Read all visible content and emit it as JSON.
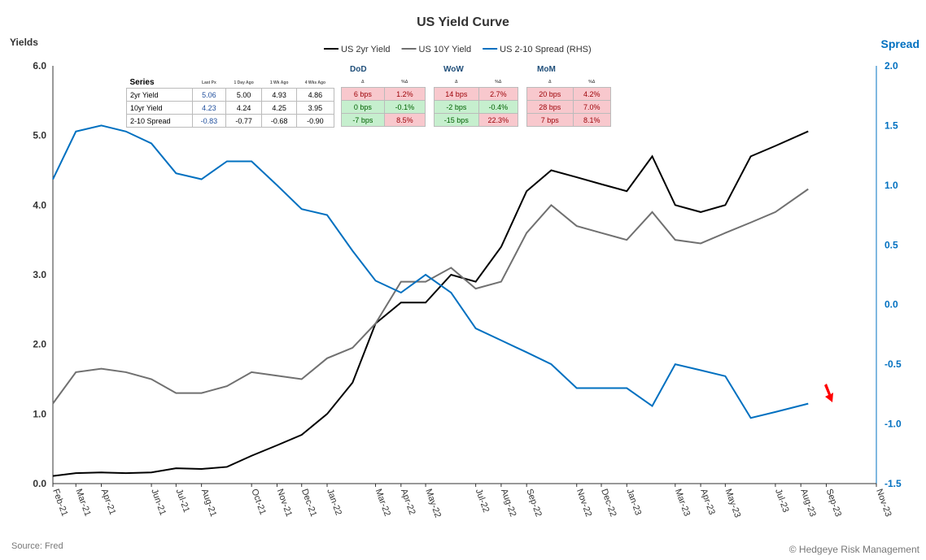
{
  "chart_data": {
    "type": "line",
    "title": "US Yield Curve",
    "ylabel": "Yields",
    "y2label": "Spread",
    "ylim": [
      0,
      6
    ],
    "y2lim": [
      -1.5,
      2.0
    ],
    "yticks": [
      "0.0",
      "1.0",
      "2.0",
      "3.0",
      "4.0",
      "5.0",
      "6.0"
    ],
    "y2ticks": [
      "-1.5",
      "-1.0",
      "-0.5",
      "0.0",
      "0.5",
      "1.0",
      "1.5",
      "2.0"
    ],
    "xticks": [
      "Feb-21",
      "Mar-21",
      "Apr-21",
      "Jun-21",
      "Jul-21",
      "Aug-21",
      "Oct-21",
      "Nov-21",
      "Dec-21",
      "Jan-22",
      "Mar-22",
      "Apr-22",
      "May-22",
      "Jul-22",
      "Aug-22",
      "Sep-22",
      "Nov-22",
      "Dec-22",
      "Jan-23",
      "Mar-23",
      "Apr-23",
      "May-23",
      "Jul-23",
      "Aug-23",
      "Sep-23",
      "Nov-23"
    ],
    "xrange": [
      "2021-02-01",
      "2023-11-01"
    ],
    "legend": "top-center",
    "dates": [
      "2021-02-01",
      "2021-03-01",
      "2021-04-01",
      "2021-05-01",
      "2021-06-01",
      "2021-07-01",
      "2021-08-01",
      "2021-09-01",
      "2021-10-01",
      "2021-11-01",
      "2021-12-01",
      "2022-01-01",
      "2022-02-01",
      "2022-03-01",
      "2022-04-01",
      "2022-05-01",
      "2022-06-01",
      "2022-07-01",
      "2022-08-01",
      "2022-09-01",
      "2022-10-01",
      "2022-11-01",
      "2022-12-01",
      "2023-01-01",
      "2023-02-01",
      "2023-03-01",
      "2023-04-01",
      "2023-05-01",
      "2023-06-01",
      "2023-07-01",
      "2023-08-10"
    ],
    "series": [
      {
        "name": "US 2yr Yield",
        "axis": "left",
        "color": "#000000",
        "values": [
          0.11,
          0.15,
          0.16,
          0.15,
          0.16,
          0.22,
          0.21,
          0.24,
          0.4,
          0.55,
          0.7,
          1.0,
          1.45,
          2.3,
          2.6,
          2.6,
          3.0,
          2.9,
          3.4,
          4.2,
          4.5,
          4.4,
          4.3,
          4.2,
          4.7,
          4.0,
          3.9,
          4.0,
          4.7,
          4.85,
          5.06
        ]
      },
      {
        "name": "US 10Y Yield",
        "axis": "left",
        "color": "#707070",
        "values": [
          1.15,
          1.6,
          1.65,
          1.6,
          1.5,
          1.3,
          1.3,
          1.4,
          1.6,
          1.55,
          1.5,
          1.8,
          1.95,
          2.3,
          2.9,
          2.9,
          3.1,
          2.8,
          2.9,
          3.6,
          4.0,
          3.7,
          3.6,
          3.5,
          3.9,
          3.5,
          3.45,
          3.6,
          3.75,
          3.9,
          4.23
        ]
      },
      {
        "name": "US 2-10 Spread (RHS)",
        "axis": "right",
        "color": "#0070c0",
        "values": [
          1.05,
          1.45,
          1.5,
          1.45,
          1.35,
          1.1,
          1.05,
          1.2,
          1.2,
          1.0,
          0.8,
          0.75,
          0.45,
          0.2,
          0.1,
          0.25,
          0.1,
          -0.2,
          -0.3,
          -0.4,
          -0.5,
          -0.7,
          -0.7,
          -0.7,
          -0.85,
          -0.5,
          -0.55,
          -0.6,
          -0.95,
          -0.9,
          -0.83
        ]
      }
    ]
  },
  "table": {
    "series_label": "Series",
    "headers": [
      "Last Px",
      "1 Day Ago",
      "1 Wk Ago",
      "4 Wks Ago"
    ],
    "groups": [
      "DoD",
      "WoW",
      "MoM"
    ],
    "delta": "Δ",
    "pct_delta": "%Δ",
    "rows": [
      {
        "name": "2yr Yield",
        "vals": [
          "5.06",
          "5.00",
          "4.93",
          "4.86"
        ],
        "dod": [
          "6 bps",
          "1.2%"
        ],
        "wow": [
          "14 bps",
          "2.7%"
        ],
        "mom": [
          "20 bps",
          "4.2%"
        ]
      },
      {
        "name": "10yr Yield",
        "vals": [
          "4.23",
          "4.24",
          "4.25",
          "3.95"
        ],
        "dod": [
          "0 bps",
          "-0.1%"
        ],
        "wow": [
          "-2 bps",
          "-0.4%"
        ],
        "mom": [
          "28 bps",
          "7.0%"
        ]
      },
      {
        "name": "2-10 Spread",
        "vals": [
          "-0.83",
          "-0.77",
          "-0.68",
          "-0.90"
        ],
        "dod": [
          "-7 bps",
          "8.5%"
        ],
        "wow": [
          "-15 bps",
          "22.3%"
        ],
        "mom": [
          "7 bps",
          "8.1%"
        ]
      }
    ],
    "colors": {
      "dod": [
        [
          "red",
          "red"
        ],
        [
          "grn",
          "grn"
        ],
        [
          "grn",
          "red"
        ]
      ],
      "wow": [
        [
          "red",
          "red"
        ],
        [
          "grn",
          "grn"
        ],
        [
          "grn",
          "red"
        ]
      ],
      "mom": [
        [
          "red",
          "red"
        ],
        [
          "red",
          "red"
        ],
        [
          "red",
          "red"
        ]
      ]
    }
  },
  "footer": {
    "source": "Source: Fred",
    "copyright": "© Hedgeye Risk Management"
  },
  "colors": {
    "arrow": "#ff0000",
    "spread_axis": "#0070c0"
  }
}
